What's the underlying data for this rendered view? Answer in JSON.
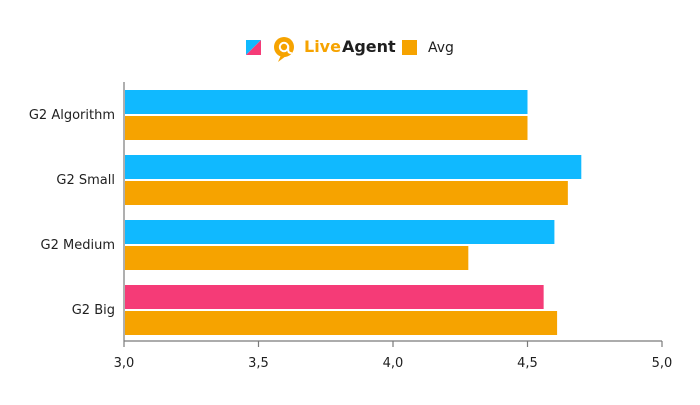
{
  "chart_data": {
    "type": "bar",
    "orientation": "horizontal",
    "categories": [
      "G2 Algorithm",
      "G2 Small",
      "G2 Medium",
      "G2 Big"
    ],
    "series": [
      {
        "name": "LiveAgent",
        "values": [
          4.5,
          4.7,
          4.6,
          4.56
        ],
        "color": "#10b9ff",
        "point_colors": [
          "#10b9ff",
          "#10b9ff",
          "#10b9ff",
          "#f53b77"
        ]
      },
      {
        "name": "Avg",
        "values": [
          4.5,
          4.65,
          4.28,
          4.61
        ],
        "color": "#f6a300"
      }
    ],
    "xlim": [
      3.0,
      5.0
    ],
    "x_ticks": [
      "3,0",
      "3,5",
      "4,0",
      "4,5",
      "5,0"
    ],
    "x_tick_values": [
      3.0,
      3.5,
      4.0,
      4.5,
      5.0
    ],
    "legend": {
      "position": "top-center",
      "liveagent_label_parts": [
        "Live",
        "Agent"
      ],
      "liveagent_colors": {
        "blue": "#10b9ff",
        "pink": "#f53b77",
        "orange": "#f6a300",
        "brand": "#f6a300",
        "text": "#1f1f1f"
      },
      "avg_label": "Avg"
    },
    "grid": false
  }
}
